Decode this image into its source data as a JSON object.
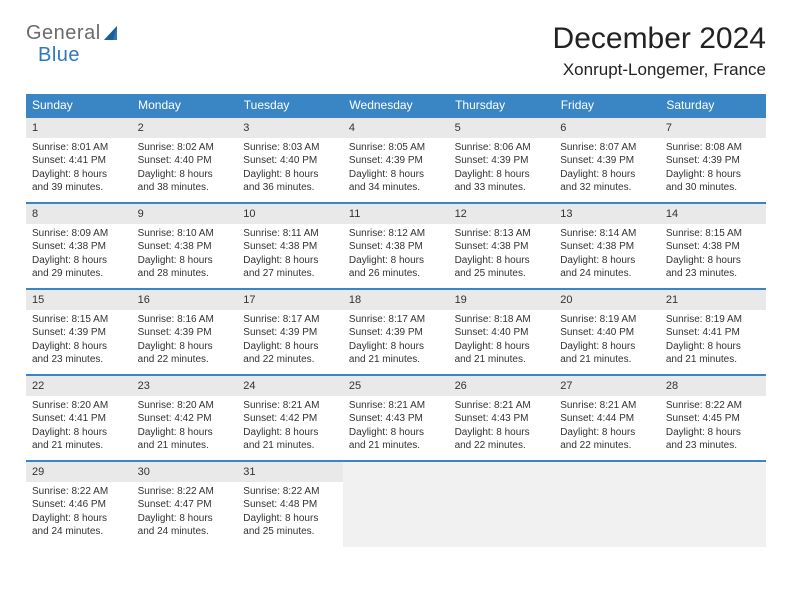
{
  "logo": {
    "part1": "General",
    "part2": "Blue"
  },
  "title": "December 2024",
  "location": "Xonrupt-Longemer, France",
  "colors": {
    "header_bg": "#3a86c4",
    "header_text": "#ffffff",
    "row_border": "#3a86c4",
    "daynum_bg": "#e9e9e9",
    "empty_bg": "#f1f1f1",
    "logo_gray": "#6b6b6b",
    "logo_blue": "#2f78b9"
  },
  "weekdays": [
    "Sunday",
    "Monday",
    "Tuesday",
    "Wednesday",
    "Thursday",
    "Friday",
    "Saturday"
  ],
  "grid": {
    "rows": 5,
    "cols": 7,
    "start_offset": 0,
    "days_in_month": 31
  },
  "days": [
    {
      "n": 1,
      "sunrise": "8:01 AM",
      "sunset": "4:41 PM",
      "daylight": "8 hours and 39 minutes."
    },
    {
      "n": 2,
      "sunrise": "8:02 AM",
      "sunset": "4:40 PM",
      "daylight": "8 hours and 38 minutes."
    },
    {
      "n": 3,
      "sunrise": "8:03 AM",
      "sunset": "4:40 PM",
      "daylight": "8 hours and 36 minutes."
    },
    {
      "n": 4,
      "sunrise": "8:05 AM",
      "sunset": "4:39 PM",
      "daylight": "8 hours and 34 minutes."
    },
    {
      "n": 5,
      "sunrise": "8:06 AM",
      "sunset": "4:39 PM",
      "daylight": "8 hours and 33 minutes."
    },
    {
      "n": 6,
      "sunrise": "8:07 AM",
      "sunset": "4:39 PM",
      "daylight": "8 hours and 32 minutes."
    },
    {
      "n": 7,
      "sunrise": "8:08 AM",
      "sunset": "4:39 PM",
      "daylight": "8 hours and 30 minutes."
    },
    {
      "n": 8,
      "sunrise": "8:09 AM",
      "sunset": "4:38 PM",
      "daylight": "8 hours and 29 minutes."
    },
    {
      "n": 9,
      "sunrise": "8:10 AM",
      "sunset": "4:38 PM",
      "daylight": "8 hours and 28 minutes."
    },
    {
      "n": 10,
      "sunrise": "8:11 AM",
      "sunset": "4:38 PM",
      "daylight": "8 hours and 27 minutes."
    },
    {
      "n": 11,
      "sunrise": "8:12 AM",
      "sunset": "4:38 PM",
      "daylight": "8 hours and 26 minutes."
    },
    {
      "n": 12,
      "sunrise": "8:13 AM",
      "sunset": "4:38 PM",
      "daylight": "8 hours and 25 minutes."
    },
    {
      "n": 13,
      "sunrise": "8:14 AM",
      "sunset": "4:38 PM",
      "daylight": "8 hours and 24 minutes."
    },
    {
      "n": 14,
      "sunrise": "8:15 AM",
      "sunset": "4:38 PM",
      "daylight": "8 hours and 23 minutes."
    },
    {
      "n": 15,
      "sunrise": "8:15 AM",
      "sunset": "4:39 PM",
      "daylight": "8 hours and 23 minutes."
    },
    {
      "n": 16,
      "sunrise": "8:16 AM",
      "sunset": "4:39 PM",
      "daylight": "8 hours and 22 minutes."
    },
    {
      "n": 17,
      "sunrise": "8:17 AM",
      "sunset": "4:39 PM",
      "daylight": "8 hours and 22 minutes."
    },
    {
      "n": 18,
      "sunrise": "8:17 AM",
      "sunset": "4:39 PM",
      "daylight": "8 hours and 21 minutes."
    },
    {
      "n": 19,
      "sunrise": "8:18 AM",
      "sunset": "4:40 PM",
      "daylight": "8 hours and 21 minutes."
    },
    {
      "n": 20,
      "sunrise": "8:19 AM",
      "sunset": "4:40 PM",
      "daylight": "8 hours and 21 minutes."
    },
    {
      "n": 21,
      "sunrise": "8:19 AM",
      "sunset": "4:41 PM",
      "daylight": "8 hours and 21 minutes."
    },
    {
      "n": 22,
      "sunrise": "8:20 AM",
      "sunset": "4:41 PM",
      "daylight": "8 hours and 21 minutes."
    },
    {
      "n": 23,
      "sunrise": "8:20 AM",
      "sunset": "4:42 PM",
      "daylight": "8 hours and 21 minutes."
    },
    {
      "n": 24,
      "sunrise": "8:21 AM",
      "sunset": "4:42 PM",
      "daylight": "8 hours and 21 minutes."
    },
    {
      "n": 25,
      "sunrise": "8:21 AM",
      "sunset": "4:43 PM",
      "daylight": "8 hours and 21 minutes."
    },
    {
      "n": 26,
      "sunrise": "8:21 AM",
      "sunset": "4:43 PM",
      "daylight": "8 hours and 22 minutes."
    },
    {
      "n": 27,
      "sunrise": "8:21 AM",
      "sunset": "4:44 PM",
      "daylight": "8 hours and 22 minutes."
    },
    {
      "n": 28,
      "sunrise": "8:22 AM",
      "sunset": "4:45 PM",
      "daylight": "8 hours and 23 minutes."
    },
    {
      "n": 29,
      "sunrise": "8:22 AM",
      "sunset": "4:46 PM",
      "daylight": "8 hours and 24 minutes."
    },
    {
      "n": 30,
      "sunrise": "8:22 AM",
      "sunset": "4:47 PM",
      "daylight": "8 hours and 24 minutes."
    },
    {
      "n": 31,
      "sunrise": "8:22 AM",
      "sunset": "4:48 PM",
      "daylight": "8 hours and 25 minutes."
    }
  ],
  "labels": {
    "sunrise": "Sunrise: ",
    "sunset": "Sunset: ",
    "daylight": "Daylight: "
  }
}
